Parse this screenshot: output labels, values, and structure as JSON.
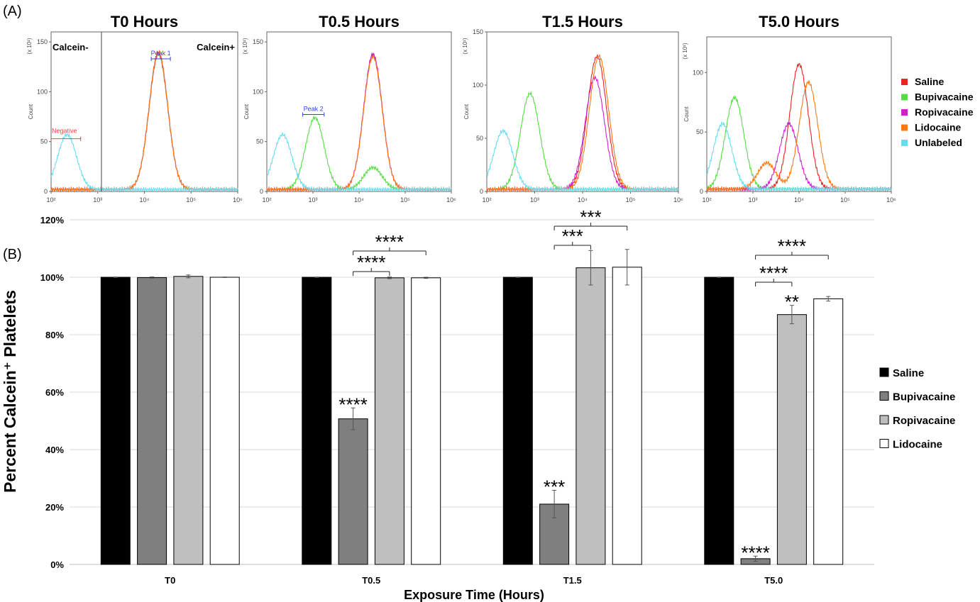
{
  "panel_a": {
    "label": "(A)",
    "y_axis_label": "Count",
    "y_exponent": "(x 10¹)",
    "x_ticks": [
      "10²",
      "10³",
      "10⁴",
      "10⁵",
      "10⁶"
    ],
    "gate_labels": {
      "calcein_neg": "Calcein-",
      "calcein_pos": "Calcein+",
      "peak1": "Peak 1",
      "peak2": "Peak 2",
      "negative": "Negative"
    },
    "legend": [
      {
        "name": "Saline",
        "color": "#ee2222"
      },
      {
        "name": "Bupivacaine",
        "color": "#55dd44"
      },
      {
        "name": "Ropivacaine",
        "color": "#cc22cc"
      },
      {
        "name": "Lidocaine",
        "color": "#ff7711"
      },
      {
        "name": "Unlabeled",
        "color": "#66ddee"
      }
    ]
  },
  "chart_data": [
    {
      "type": "area",
      "title": "T0 Hours",
      "x_scale": "log",
      "xlim": [
        100,
        1000000
      ],
      "ylim": [
        0,
        160
      ],
      "y_ticks": [
        0,
        50,
        100,
        150
      ],
      "series": [
        {
          "name": "Saline",
          "peaks": [
            {
              "center": 20000,
              "height": 138
            }
          ]
        },
        {
          "name": "Bupivacaine",
          "peaks": [
            {
              "center": 20000,
              "height": 135
            }
          ]
        },
        {
          "name": "Ropivacaine",
          "peaks": [
            {
              "center": 20000,
              "height": 136
            }
          ]
        },
        {
          "name": "Lidocaine",
          "peaks": [
            {
              "center": 20000,
              "height": 137
            }
          ]
        },
        {
          "name": "Unlabeled",
          "peaks": [
            {
              "center": 220,
              "height": 55
            }
          ]
        }
      ]
    },
    {
      "type": "area",
      "title": "T0.5 Hours",
      "x_scale": "log",
      "xlim": [
        100,
        1000000
      ],
      "ylim": [
        0,
        160
      ],
      "y_ticks": [
        0,
        50,
        100,
        150
      ],
      "series": [
        {
          "name": "Saline",
          "peaks": [
            {
              "center": 20000,
              "height": 135
            }
          ]
        },
        {
          "name": "Bupivacaine",
          "peaks": [
            {
              "center": 1100,
              "height": 72
            },
            {
              "center": 20000,
              "height": 22
            }
          ]
        },
        {
          "name": "Ropivacaine",
          "peaks": [
            {
              "center": 20000,
              "height": 136
            }
          ]
        },
        {
          "name": "Lidocaine",
          "peaks": [
            {
              "center": 20000,
              "height": 133
            }
          ]
        },
        {
          "name": "Unlabeled",
          "peaks": [
            {
              "center": 220,
              "height": 55
            }
          ]
        }
      ]
    },
    {
      "type": "area",
      "title": "T1.5 Hours",
      "x_scale": "log",
      "xlim": [
        100,
        1000000
      ],
      "ylim": [
        0,
        150
      ],
      "y_ticks": [
        0,
        50,
        100,
        150
      ],
      "series": [
        {
          "name": "Saline",
          "peaks": [
            {
              "center": 20000,
              "height": 125
            }
          ]
        },
        {
          "name": "Bupivacaine",
          "peaks": [
            {
              "center": 800,
              "height": 90
            }
          ]
        },
        {
          "name": "Ropivacaine",
          "peaks": [
            {
              "center": 18000,
              "height": 105
            }
          ]
        },
        {
          "name": "Lidocaine",
          "peaks": [
            {
              "center": 22000,
              "height": 125
            }
          ]
        },
        {
          "name": "Unlabeled",
          "peaks": [
            {
              "center": 220,
              "height": 55
            }
          ]
        }
      ]
    },
    {
      "type": "area",
      "title": "T5.0 Hours",
      "x_scale": "log",
      "xlim": [
        100,
        1000000
      ],
      "ylim": [
        0,
        130
      ],
      "y_ticks": [
        0,
        50,
        100
      ],
      "series": [
        {
          "name": "Saline",
          "peaks": [
            {
              "center": 10000,
              "height": 105
            }
          ]
        },
        {
          "name": "Bupivacaine",
          "peaks": [
            {
              "center": 400,
              "height": 77
            }
          ]
        },
        {
          "name": "Ropivacaine",
          "peaks": [
            {
              "center": 6000,
              "height": 55
            }
          ]
        },
        {
          "name": "Lidocaine",
          "peaks": [
            {
              "center": 16000,
              "height": 90
            },
            {
              "center": 2000,
              "height": 22
            }
          ]
        },
        {
          "name": "Unlabeled",
          "peaks": [
            {
              "center": 220,
              "height": 55
            }
          ]
        }
      ]
    },
    {
      "type": "bar",
      "panel_label": "(B)",
      "categories": [
        "T0",
        "T0.5",
        "T1.5",
        "T5.0"
      ],
      "xlabel": "Exposure Time (Hours)",
      "ylabel": "Percent Calcein⁺ Platelets",
      "ylim": [
        0,
        120
      ],
      "y_ticks": [
        "0%",
        "20%",
        "40%",
        "60%",
        "80%",
        "100%",
        "120%"
      ],
      "grid": true,
      "legend_position": "right",
      "series": [
        {
          "name": "Saline",
          "color": "#000000",
          "values": [
            100,
            100,
            100,
            100
          ],
          "errors": [
            0.1,
            0.1,
            0.1,
            0.1
          ]
        },
        {
          "name": "Bupivacaine",
          "color": "#7f7f7f",
          "values": [
            99.9,
            50.7,
            21,
            2
          ],
          "errors": [
            0.2,
            3.8,
            4.8,
            0.9
          ]
        },
        {
          "name": "Ropivacaine",
          "color": "#bfbfbf",
          "values": [
            100.3,
            99.8,
            103.3,
            87
          ],
          "errors": [
            0.5,
            0.3,
            6,
            3.2
          ]
        },
        {
          "name": "Lidocaine",
          "color": "#ffffff",
          "values": [
            100,
            99.8,
            103.5,
            92.5
          ],
          "errors": [
            0.1,
            0.2,
            6.2,
            0.8
          ]
        }
      ],
      "annotations": {
        "bar_stars": [
          {
            "category": "T0.5",
            "series": "Bupivacaine",
            "text": "****"
          },
          {
            "category": "T1.5",
            "series": "Bupivacaine",
            "text": "***"
          },
          {
            "category": "T5.0",
            "series": "Bupivacaine",
            "text": "****"
          },
          {
            "category": "T5.0",
            "series": "Ropivacaine",
            "text": "**"
          }
        ],
        "brackets": [
          {
            "category": "T0.5",
            "from": "Bupivacaine",
            "to": "Ropivacaine",
            "text": "****"
          },
          {
            "category": "T0.5",
            "from": "Bupivacaine",
            "to": "Lidocaine",
            "text": "****"
          },
          {
            "category": "T1.5",
            "from": "Bupivacaine",
            "to": "Ropivacaine",
            "text": "***"
          },
          {
            "category": "T1.5",
            "from": "Bupivacaine",
            "to": "Lidocaine",
            "text": "***"
          },
          {
            "category": "T5.0",
            "from": "Bupivacaine",
            "to": "Ropivacaine",
            "text": "****"
          },
          {
            "category": "T5.0",
            "from": "Bupivacaine",
            "to": "Lidocaine",
            "text": "****"
          }
        ]
      }
    }
  ]
}
